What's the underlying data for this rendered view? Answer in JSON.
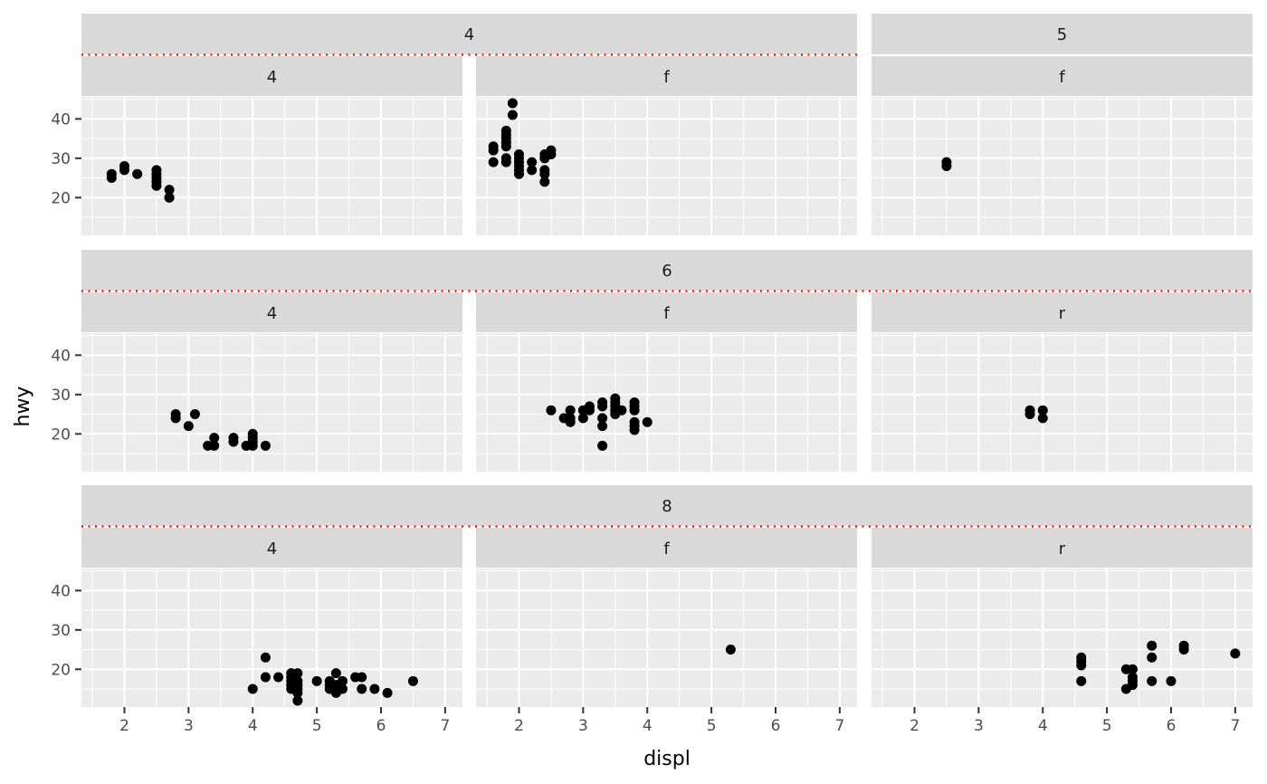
{
  "chart_data": {
    "type": "scatter",
    "xlabel": "displ",
    "ylabel": "hwy",
    "xlim": [
      1.33,
      7.27
    ],
    "ylim": [
      10.4,
      45.6
    ],
    "xticks": [
      2,
      3,
      4,
      5,
      6,
      7
    ],
    "yticks": [
      20,
      30,
      40
    ],
    "grid": true,
    "colors": {
      "panel": "#EBEBEB",
      "strip": "#D9D9D9",
      "point": "#000000",
      "nest_line": "#FF0000"
    },
    "rows": [
      {
        "label": "4",
        "groups": [
          {
            "label": "4",
            "span": [
              0,
              1
            ],
            "nest_line": true
          },
          {
            "label": "5",
            "span": [
              2,
              2
            ],
            "nest_line": false
          }
        ],
        "panels": [
          {
            "label": "4",
            "points": [
              [
                1.8,
                25
              ],
              [
                1.8,
                26
              ],
              [
                2.0,
                27
              ],
              [
                2.0,
                28
              ],
              [
                2.2,
                26
              ],
              [
                2.5,
                23
              ],
              [
                2.5,
                24
              ],
              [
                2.5,
                25
              ],
              [
                2.5,
                26
              ],
              [
                2.5,
                27
              ],
              [
                2.7,
                20
              ],
              [
                2.7,
                22
              ],
              [
                2.7,
                20
              ]
            ]
          },
          {
            "label": "f",
            "points": [
              [
                1.6,
                29
              ],
              [
                1.6,
                32
              ],
              [
                1.6,
                33
              ],
              [
                1.8,
                29
              ],
              [
                1.8,
                30
              ],
              [
                1.8,
                33
              ],
              [
                1.8,
                34
              ],
              [
                1.8,
                35
              ],
              [
                1.8,
                36
              ],
              [
                1.8,
                37
              ],
              [
                1.9,
                44
              ],
              [
                1.9,
                41
              ],
              [
                2.0,
                26
              ],
              [
                2.0,
                27
              ],
              [
                2.0,
                28
              ],
              [
                2.0,
                29
              ],
              [
                2.0,
                30
              ],
              [
                2.0,
                31
              ],
              [
                2.2,
                27
              ],
              [
                2.2,
                29
              ],
              [
                2.4,
                24
              ],
              [
                2.4,
                26
              ],
              [
                2.4,
                27
              ],
              [
                2.4,
                30
              ],
              [
                2.4,
                31
              ],
              [
                2.5,
                31
              ],
              [
                2.5,
                32
              ]
            ]
          },
          {
            "label": "f",
            "points": [
              [
                2.5,
                28
              ],
              [
                2.5,
                29
              ]
            ]
          }
        ]
      },
      {
        "label": "6",
        "groups": [
          {
            "label": "6",
            "span": [
              0,
              2
            ],
            "nest_line": true
          }
        ],
        "panels": [
          {
            "label": "4",
            "points": [
              [
                2.8,
                24
              ],
              [
                2.8,
                25
              ],
              [
                3.0,
                22
              ],
              [
                3.1,
                25
              ],
              [
                3.3,
                17
              ],
              [
                3.4,
                17
              ],
              [
                3.4,
                19
              ],
              [
                3.7,
                18
              ],
              [
                3.7,
                19
              ],
              [
                3.9,
                17
              ],
              [
                4.0,
                17
              ],
              [
                4.0,
                18
              ],
              [
                4.0,
                19
              ],
              [
                4.0,
                20
              ],
              [
                4.2,
                17
              ]
            ]
          },
          {
            "label": "f",
            "points": [
              [
                2.5,
                26
              ],
              [
                2.7,
                24
              ],
              [
                2.8,
                23
              ],
              [
                2.8,
                24
              ],
              [
                2.8,
                26
              ],
              [
                3.0,
                24
              ],
              [
                3.0,
                26
              ],
              [
                3.1,
                26
              ],
              [
                3.1,
                27
              ],
              [
                3.3,
                17
              ],
              [
                3.3,
                22
              ],
              [
                3.3,
                24
              ],
              [
                3.3,
                27
              ],
              [
                3.3,
                28
              ],
              [
                3.5,
                25
              ],
              [
                3.5,
                26
              ],
              [
                3.5,
                27
              ],
              [
                3.5,
                28
              ],
              [
                3.5,
                29
              ],
              [
                3.6,
                26
              ],
              [
                3.8,
                21
              ],
              [
                3.8,
                22
              ],
              [
                3.8,
                23
              ],
              [
                3.8,
                26
              ],
              [
                3.8,
                27
              ],
              [
                3.8,
                28
              ],
              [
                4.0,
                23
              ]
            ]
          },
          {
            "label": "r",
            "points": [
              [
                3.8,
                25
              ],
              [
                3.8,
                26
              ],
              [
                4.0,
                24
              ],
              [
                4.0,
                26
              ]
            ]
          }
        ]
      },
      {
        "label": "8",
        "groups": [
          {
            "label": "8",
            "span": [
              0,
              2
            ],
            "nest_line": true
          }
        ],
        "panels": [
          {
            "label": "4",
            "points": [
              [
                4.0,
                15
              ],
              [
                4.2,
                18
              ],
              [
                4.2,
                23
              ],
              [
                4.4,
                18
              ],
              [
                4.6,
                15
              ],
              [
                4.6,
                16
              ],
              [
                4.6,
                17
              ],
              [
                4.6,
                18
              ],
              [
                4.6,
                19
              ],
              [
                4.7,
                12
              ],
              [
                4.7,
                14
              ],
              [
                4.7,
                15
              ],
              [
                4.7,
                16
              ],
              [
                4.7,
                17
              ],
              [
                4.7,
                19
              ],
              [
                5.0,
                17
              ],
              [
                5.2,
                15
              ],
              [
                5.2,
                16
              ],
              [
                5.2,
                17
              ],
              [
                5.3,
                14
              ],
              [
                5.3,
                16
              ],
              [
                5.3,
                19
              ],
              [
                5.4,
                15
              ],
              [
                5.4,
                17
              ],
              [
                5.6,
                18
              ],
              [
                5.7,
                15
              ],
              [
                5.7,
                18
              ],
              [
                5.9,
                15
              ],
              [
                6.1,
                14
              ],
              [
                6.5,
                17
              ]
            ]
          },
          {
            "label": "f",
            "points": [
              [
                5.3,
                25
              ]
            ]
          },
          {
            "label": "r",
            "points": [
              [
                4.6,
                17
              ],
              [
                4.6,
                21
              ],
              [
                4.6,
                22
              ],
              [
                4.6,
                23
              ],
              [
                5.3,
                15
              ],
              [
                5.3,
                20
              ],
              [
                5.4,
                16
              ],
              [
                5.4,
                17
              ],
              [
                5.4,
                18
              ],
              [
                5.4,
                20
              ],
              [
                5.7,
                17
              ],
              [
                5.7,
                23
              ],
              [
                5.7,
                26
              ],
              [
                6.0,
                17
              ],
              [
                6.2,
                25
              ],
              [
                6.2,
                26
              ],
              [
                7.0,
                24
              ]
            ]
          }
        ]
      }
    ]
  }
}
